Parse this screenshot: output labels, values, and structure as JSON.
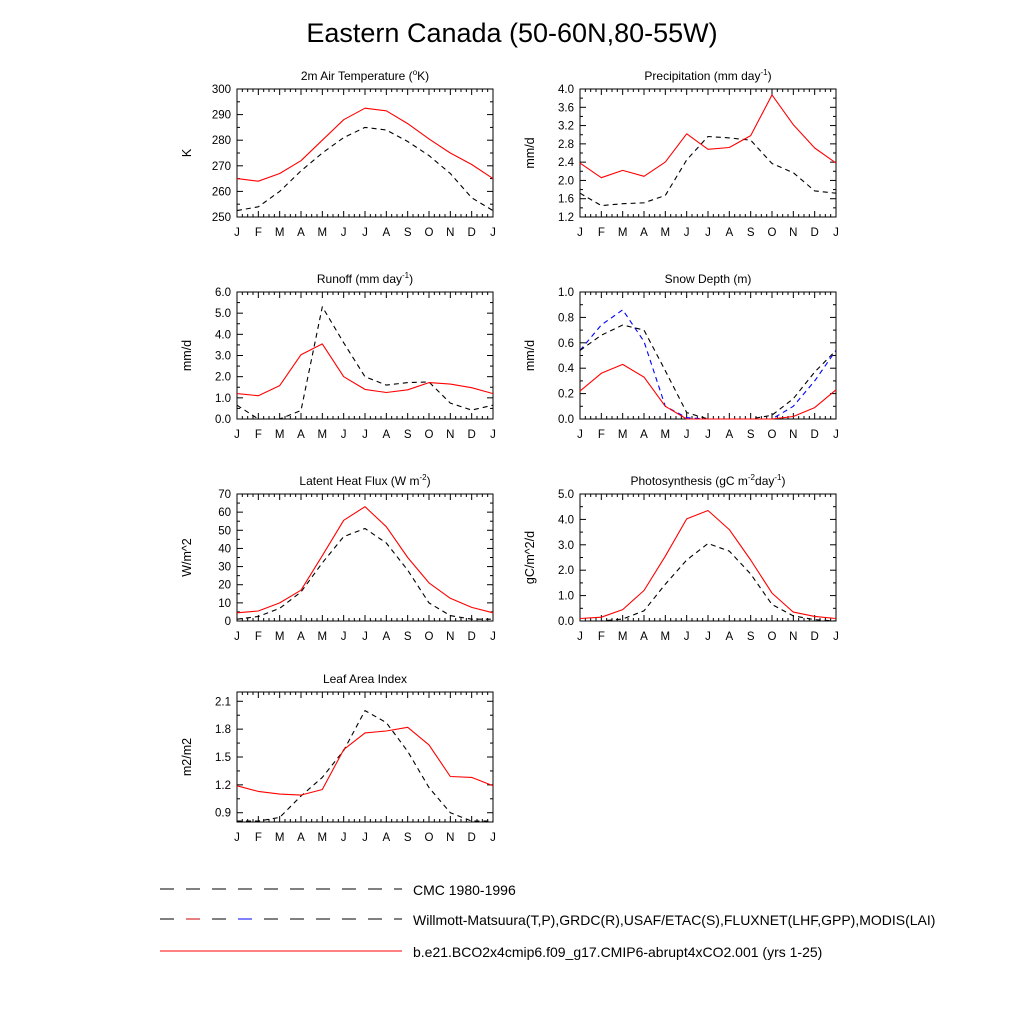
{
  "page": {
    "title": "Eastern Canada (50-60N,80-55W)"
  },
  "legend": {
    "entries": [
      {
        "label": "CMC 1980-1996",
        "style": "dashed",
        "colors": [
          "#000000"
        ]
      },
      {
        "label": "Willmott-Matsuura(T,P),GRDC(R),USAF/ETAC(S),FLUXNET(LHF,GPP),MODIS(LAI)",
        "style": "dashed",
        "colors": [
          "#000000",
          "#cc0000",
          "#0000ff"
        ]
      },
      {
        "label": "b.e21.BCO2x4cmip6.f09_g17.CMIP6-abrupt4xCO2.001 (yrs 1-25)",
        "style": "solid",
        "colors": [
          "#ff0000"
        ]
      }
    ]
  },
  "chart_data": [
    {
      "type": "line",
      "title": "2m Air Temperature (",
      "title_sup": "o",
      "title_tail": "K)",
      "ylabel": "K",
      "categories": [
        "J",
        "F",
        "M",
        "A",
        "M",
        "J",
        "J",
        "A",
        "S",
        "O",
        "N",
        "D",
        "J"
      ],
      "ylim": [
        250,
        300
      ],
      "yticks": [
        250,
        260,
        270,
        280,
        290,
        300
      ],
      "ytick_labels": [
        "250",
        "260",
        "270",
        "280",
        "290",
        "300"
      ],
      "series": [
        {
          "name": "obs",
          "color": "#000000",
          "dash": true,
          "values": [
            252.5,
            254,
            260,
            268,
            275,
            281,
            285,
            284,
            279.5,
            274,
            267,
            257.5,
            252.5
          ]
        },
        {
          "name": "model",
          "color": "#ff0000",
          "dash": false,
          "values": [
            265,
            264,
            267,
            272,
            280,
            288,
            292.5,
            291.5,
            286.5,
            280.5,
            275,
            270.5,
            265
          ]
        }
      ]
    },
    {
      "type": "line",
      "title": "Precipitation (mm day",
      "title_sup": "-1",
      "title_tail": ")",
      "ylabel": "mm/d",
      "categories": [
        "J",
        "F",
        "M",
        "A",
        "M",
        "J",
        "J",
        "A",
        "S",
        "O",
        "N",
        "D",
        "J"
      ],
      "ylim": [
        1.2,
        4.0
      ],
      "yticks": [
        1.2,
        1.6,
        2.0,
        2.4,
        2.8,
        3.2,
        3.6,
        4.0
      ],
      "ytick_labels": [
        "1.2",
        "1.6",
        "2.0",
        "2.4",
        "2.8",
        "3.2",
        "3.6",
        "4.0"
      ],
      "series": [
        {
          "name": "obs",
          "color": "#000000",
          "dash": true,
          "values": [
            1.72,
            1.45,
            1.49,
            1.51,
            1.67,
            2.45,
            2.96,
            2.93,
            2.88,
            2.37,
            2.17,
            1.77,
            1.72
          ]
        },
        {
          "name": "model",
          "color": "#ff0000",
          "dash": false,
          "values": [
            2.38,
            2.06,
            2.22,
            2.09,
            2.4,
            3.02,
            2.68,
            2.72,
            2.98,
            3.87,
            3.22,
            2.71,
            2.38
          ]
        }
      ]
    },
    {
      "type": "line",
      "title": "Runoff (mm day",
      "title_sup": "-1",
      "title_tail": ")",
      "ylabel": "mm/d",
      "categories": [
        "J",
        "F",
        "M",
        "A",
        "M",
        "J",
        "J",
        "A",
        "S",
        "O",
        "N",
        "D",
        "J"
      ],
      "ylim": [
        0,
        6.0
      ],
      "yticks": [
        0,
        1,
        2,
        3,
        4,
        5,
        6
      ],
      "ytick_labels": [
        "0.0",
        "1.0",
        "2.0",
        "3.0",
        "4.0",
        "5.0",
        "6.0"
      ],
      "series": [
        {
          "name": "obs",
          "color": "#000000",
          "dash": true,
          "values": [
            0.65,
            0.0,
            0.0,
            0.4,
            5.3,
            3.6,
            2.0,
            1.6,
            1.72,
            1.75,
            0.75,
            0.42,
            0.65
          ]
        },
        {
          "name": "model",
          "color": "#ff0000",
          "dash": false,
          "values": [
            1.2,
            1.1,
            1.58,
            3.04,
            3.55,
            2.0,
            1.4,
            1.25,
            1.38,
            1.72,
            1.65,
            1.48,
            1.2
          ]
        }
      ]
    },
    {
      "type": "line",
      "title": "Snow Depth (m)",
      "title_sup": "",
      "title_tail": "",
      "ylabel": "mm/d",
      "categories": [
        "J",
        "F",
        "M",
        "A",
        "M",
        "J",
        "J",
        "A",
        "S",
        "O",
        "N",
        "D",
        "J"
      ],
      "ylim": [
        0,
        1.0
      ],
      "yticks": [
        0,
        0.2,
        0.4,
        0.6,
        0.8,
        1.0
      ],
      "ytick_labels": [
        "0.0",
        "0.2",
        "0.4",
        "0.6",
        "0.8",
        "1.0"
      ],
      "series": [
        {
          "name": "obs-blue",
          "color": "#0000ff",
          "dash": true,
          "values": [
            0.54,
            0.74,
            0.86,
            0.61,
            0.1,
            0.01,
            0.0,
            0.0,
            0.0,
            0.0,
            0.1,
            0.3,
            0.54
          ]
        },
        {
          "name": "obs",
          "color": "#000000",
          "dash": true,
          "values": [
            0.54,
            0.66,
            0.74,
            0.7,
            0.38,
            0.05,
            0.0,
            0.0,
            0.0,
            0.03,
            0.16,
            0.37,
            0.54
          ]
        },
        {
          "name": "model",
          "color": "#ff0000",
          "dash": false,
          "values": [
            0.22,
            0.36,
            0.43,
            0.33,
            0.1,
            0.0,
            0.0,
            0.0,
            0.0,
            0.0,
            0.02,
            0.09,
            0.23
          ]
        }
      ]
    },
    {
      "type": "line",
      "title": "Latent Heat Flux (W m",
      "title_sup": "-2",
      "title_tail": ")",
      "ylabel": "W/m^2",
      "categories": [
        "J",
        "F",
        "M",
        "A",
        "M",
        "J",
        "J",
        "A",
        "S",
        "O",
        "N",
        "D",
        "J"
      ],
      "ylim": [
        0,
        70
      ],
      "yticks": [
        0,
        10,
        20,
        30,
        40,
        50,
        60,
        70
      ],
      "ytick_labels": [
        "0",
        "10",
        "20",
        "30",
        "40",
        "50",
        "60",
        "70"
      ],
      "series": [
        {
          "name": "obs",
          "color": "#000000",
          "dash": true,
          "values": [
            1,
            2.5,
            7,
            16,
            32,
            46.5,
            51,
            43,
            28,
            10,
            3,
            1,
            1
          ]
        },
        {
          "name": "model",
          "color": "#ff0000",
          "dash": false,
          "values": [
            4.5,
            5.5,
            10,
            17,
            36,
            55.5,
            63,
            52,
            35,
            21,
            12.5,
            7.5,
            4.5
          ]
        }
      ]
    },
    {
      "type": "line",
      "title": "Photosynthesis (gC m",
      "title_sup": "-2",
      "title_mid": "day",
      "title_sup2": "-1",
      "title_tail": ")",
      "ylabel": "gC/m^2/d",
      "categories": [
        "J",
        "F",
        "M",
        "A",
        "M",
        "J",
        "J",
        "A",
        "S",
        "O",
        "N",
        "D",
        "J"
      ],
      "ylim": [
        0,
        5.0
      ],
      "yticks": [
        0,
        1,
        2,
        3,
        4,
        5
      ],
      "ytick_labels": [
        "0.0",
        "1.0",
        "2.0",
        "3.0",
        "4.0",
        "5.0"
      ],
      "series": [
        {
          "name": "obs",
          "color": "#000000",
          "dash": true,
          "values": [
            0.0,
            0.0,
            0.08,
            0.4,
            1.45,
            2.4,
            3.05,
            2.75,
            1.85,
            0.65,
            0.2,
            0.05,
            0.0
          ]
        },
        {
          "name": "model",
          "color": "#ff0000",
          "dash": false,
          "values": [
            0.1,
            0.15,
            0.45,
            1.2,
            2.55,
            4.02,
            4.35,
            3.6,
            2.4,
            1.1,
            0.35,
            0.18,
            0.1
          ]
        }
      ]
    },
    {
      "type": "line",
      "title": "Leaf Area Index",
      "title_sup": "",
      "title_tail": "",
      "ylabel": "m2/m2",
      "categories": [
        "J",
        "F",
        "M",
        "A",
        "M",
        "J",
        "J",
        "A",
        "S",
        "O",
        "N",
        "D",
        "J"
      ],
      "ylim": [
        0.8,
        2.2
      ],
      "yticks": [
        0.9,
        1.2,
        1.5,
        1.8,
        2.1
      ],
      "ytick_labels": [
        "0.9",
        "1.2",
        "1.5",
        "1.8",
        "2.1"
      ],
      "series": [
        {
          "name": "obs",
          "color": "#000000",
          "dash": true,
          "values": [
            0.81,
            0.81,
            0.85,
            1.08,
            1.28,
            1.57,
            2.0,
            1.87,
            1.56,
            1.17,
            0.9,
            0.81,
            0.81
          ]
        },
        {
          "name": "model",
          "color": "#ff0000",
          "dash": false,
          "values": [
            1.19,
            1.13,
            1.1,
            1.09,
            1.15,
            1.58,
            1.76,
            1.78,
            1.82,
            1.63,
            1.29,
            1.28,
            1.19
          ]
        }
      ]
    }
  ]
}
